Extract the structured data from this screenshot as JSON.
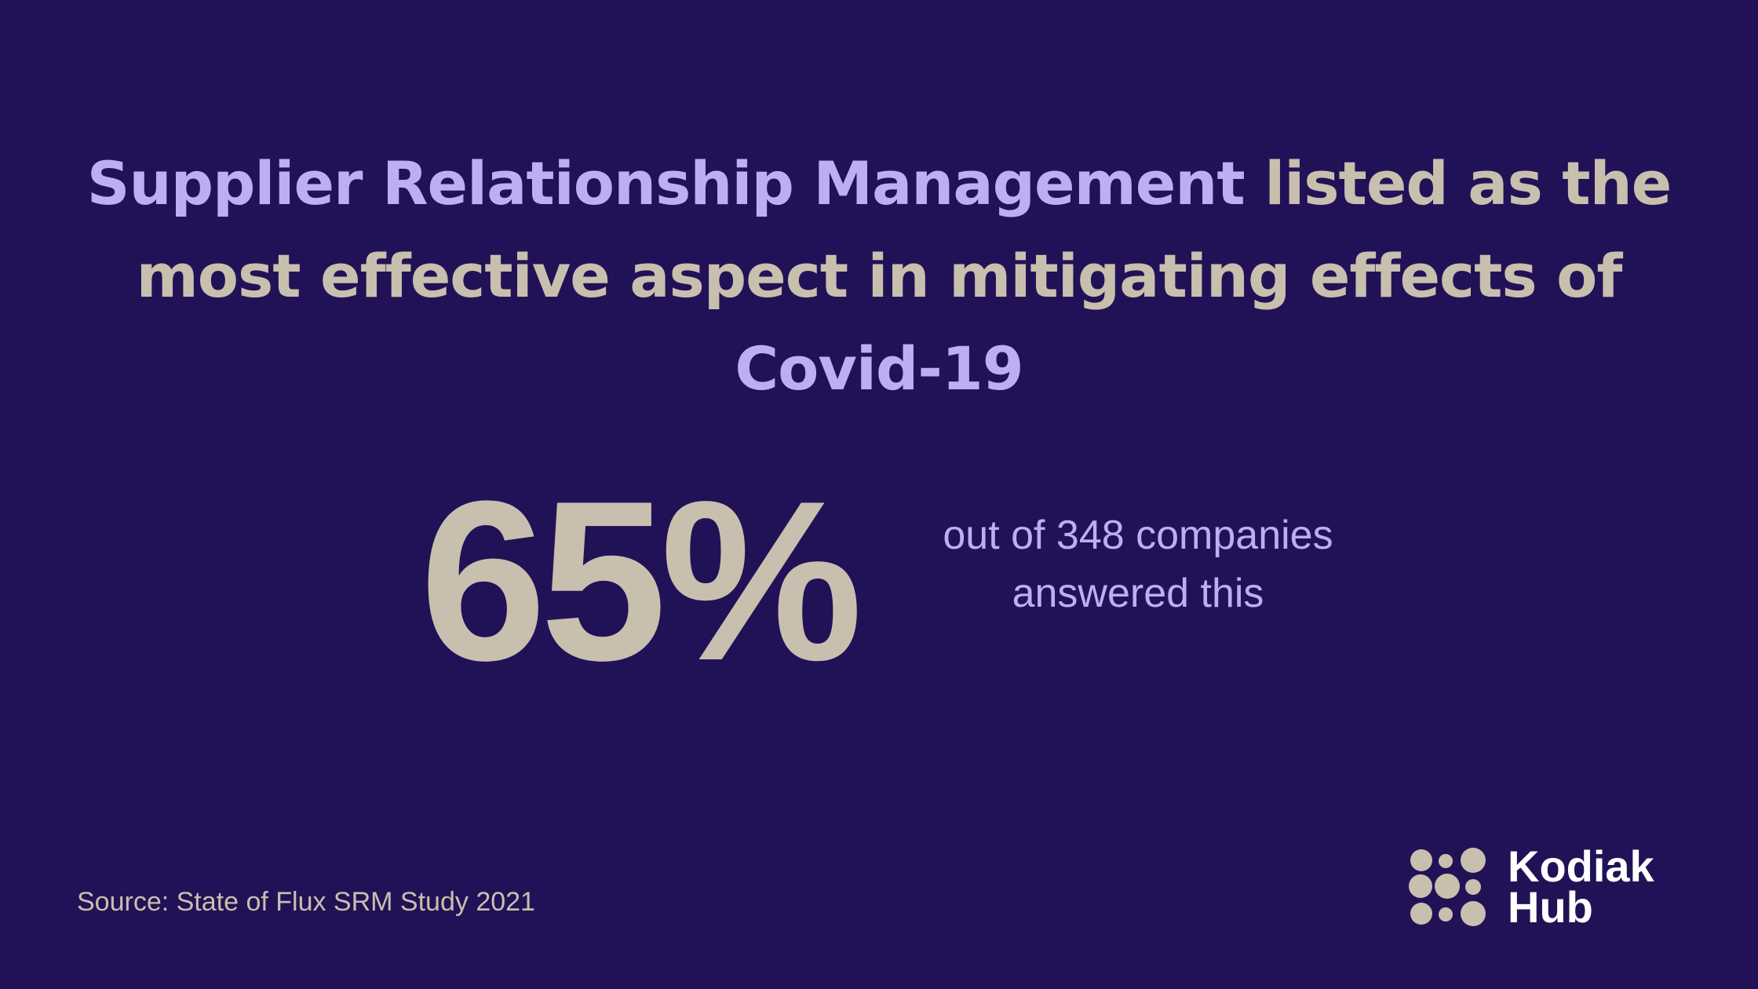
{
  "headline": {
    "accent": "Supplier Relationship Management",
    "rest_line1": " listed as the",
    "line2": "most effective aspect in mitigating effects of",
    "line3": "Covid-19"
  },
  "stat": {
    "value": "65%",
    "note_line1": "out of 348 companies",
    "note_line2": "answered this"
  },
  "source": "Source: State of Flux SRM Study 2021",
  "logo": {
    "line1": "Kodiak",
    "line2": "Hub"
  },
  "colors": {
    "background": "#211257",
    "accent": "#bcaef2",
    "beige": "#c9bfae",
    "logo_text": "#ffffff"
  }
}
